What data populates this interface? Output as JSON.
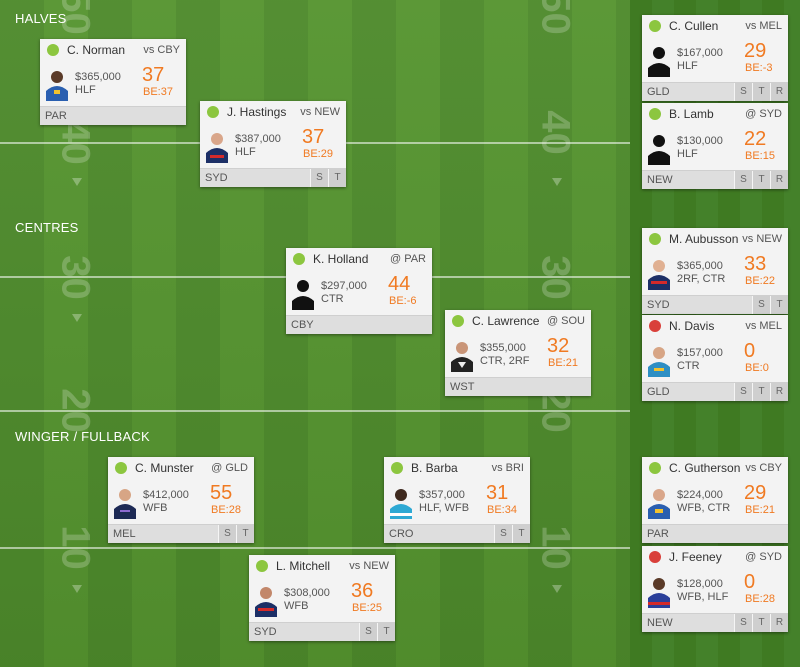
{
  "sections": {
    "halves": "HALVES",
    "centres": "CENTRES",
    "winger_fullback": "WINGER / FULLBACK"
  },
  "field_markings": {
    "yard_50": "50",
    "yard_40": "40",
    "yard_30": "30",
    "yard_20": "20",
    "yard_10": "10"
  },
  "players": {
    "norman": {
      "name": "C. Norman",
      "opponent": "vs CBY",
      "price": "$365,000",
      "position": "HLF",
      "score": "37",
      "be": "BE:37",
      "team": "PAR",
      "status": "green"
    },
    "hastings": {
      "name": "J. Hastings",
      "opponent": "vs NEW",
      "price": "$387,000",
      "position": "HLF",
      "score": "37",
      "be": "BE:29",
      "team": "SYD",
      "status": "green"
    },
    "holland": {
      "name": "K. Holland",
      "opponent": "@ PAR",
      "price": "$297,000",
      "position": "CTR",
      "score": "44",
      "be": "BE:-6",
      "team": "CBY",
      "status": "green"
    },
    "lawrence": {
      "name": "C. Lawrence",
      "opponent": "@ SOU",
      "price": "$355,000",
      "position": "CTR, 2RF",
      "score": "32",
      "be": "BE:21",
      "team": "WST",
      "status": "green"
    },
    "munster": {
      "name": "C. Munster",
      "opponent": "@ GLD",
      "price": "$412,000",
      "position": "WFB",
      "score": "55",
      "be": "BE:28",
      "team": "MEL",
      "status": "green"
    },
    "barba": {
      "name": "B. Barba",
      "opponent": "vs BRI",
      "price": "$357,000",
      "position": "HLF, WFB",
      "score": "31",
      "be": "BE:34",
      "team": "CRO",
      "status": "green"
    },
    "mitchell": {
      "name": "L. Mitchell",
      "opponent": "vs NEW",
      "price": "$308,000",
      "position": "WFB",
      "score": "36",
      "be": "BE:25",
      "team": "SYD",
      "status": "green"
    }
  },
  "bench": {
    "cullen": {
      "name": "C. Cullen",
      "opponent": "vs MEL",
      "price": "$167,000",
      "position": "HLF",
      "score": "29",
      "be": "BE:-3",
      "team": "GLD",
      "status": "green"
    },
    "lamb": {
      "name": "B. Lamb",
      "opponent": "@ SYD",
      "price": "$130,000",
      "position": "HLF",
      "score": "22",
      "be": "BE:15",
      "team": "NEW",
      "status": "green"
    },
    "aubusson": {
      "name": "M. Aubusson",
      "opponent": "vs NEW",
      "price": "$365,000",
      "position": "2RF, CTR",
      "score": "33",
      "be": "BE:22",
      "team": "SYD",
      "status": "green"
    },
    "davis": {
      "name": "N. Davis",
      "opponent": "vs MEL",
      "price": "$157,000",
      "position": "CTR",
      "score": "0",
      "be": "BE:0",
      "team": "GLD",
      "status": "red"
    },
    "gutherson": {
      "name": "C. Gutherson",
      "opponent": "vs CBY",
      "price": "$224,000",
      "position": "WFB, CTR",
      "score": "29",
      "be": "BE:21",
      "team": "PAR",
      "status": "green"
    },
    "feeney": {
      "name": "J. Feeney",
      "opponent": "@ SYD",
      "price": "$128,000",
      "position": "WFB, HLF",
      "score": "0",
      "be": "BE:28",
      "team": "NEW",
      "status": "red"
    }
  },
  "buttons": {
    "s": "S",
    "t": "T",
    "r": "R"
  },
  "colors": {
    "score": "#f07a22",
    "status_green": "#8cc63f",
    "status_red": "#d9403a",
    "card_bg": "#f3f3f3"
  }
}
